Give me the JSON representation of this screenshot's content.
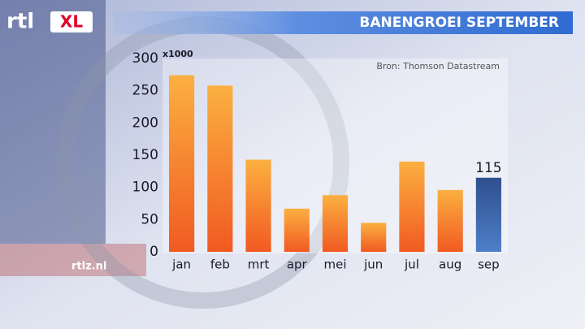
{
  "chart_data": {
    "type": "bar",
    "title": "BANENGROEI SEPTEMBER",
    "unit_label": "x1000",
    "source": "Bron: Thomson Datastream",
    "logo": "rtl",
    "logo_badge": "XL",
    "site": "rtlz.nl",
    "categories": [
      "jan",
      "feb",
      "mrt",
      "apr",
      "mei",
      "jun",
      "jul",
      "aug",
      "sep"
    ],
    "values": [
      274,
      258,
      143,
      67,
      88,
      45,
      140,
      96,
      115
    ],
    "color": "#f58220",
    "highlight": "sep",
    "highlight_color": "#3a63a8",
    "ylim": [
      0,
      300
    ],
    "yticks": [
      0,
      50,
      100,
      150,
      200,
      250,
      300
    ],
    "grid": false
  }
}
